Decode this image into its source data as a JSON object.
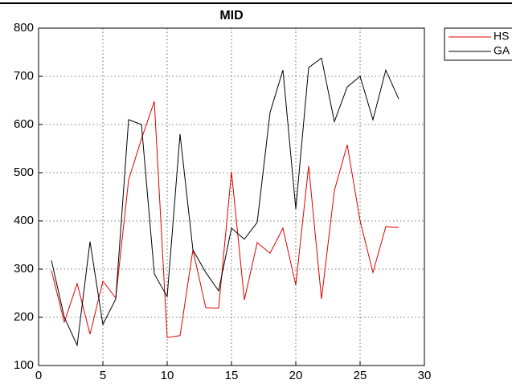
{
  "chart_data": {
    "type": "line",
    "title": "MID",
    "x": [
      1,
      2,
      3,
      4,
      5,
      6,
      7,
      8,
      9,
      10,
      11,
      12,
      13,
      14,
      15,
      16,
      17,
      18,
      19,
      20,
      21,
      22,
      23,
      24,
      25,
      26,
      27,
      28
    ],
    "series": [
      {
        "name": "HS",
        "color": "#e00000",
        "values": [
          297,
          190,
          270,
          165,
          275,
          240,
          485,
          570,
          648,
          158,
          162,
          340,
          220,
          219,
          502,
          236,
          355,
          333,
          385,
          267,
          514,
          238,
          463,
          558,
          400,
          293,
          388,
          386
        ]
      },
      {
        "name": "GA",
        "color": "#000000",
        "values": [
          318,
          200,
          142,
          357,
          185,
          238,
          610,
          600,
          290,
          243,
          580,
          340,
          293,
          255,
          385,
          362,
          397,
          625,
          713,
          425,
          718,
          738,
          606,
          678,
          700,
          610,
          713,
          653
        ]
      }
    ],
    "xlim": [
      0,
      30
    ],
    "xticks": [
      0,
      5,
      10,
      15,
      20,
      25,
      30
    ],
    "ylim": [
      100,
      800
    ],
    "yticks": [
      100,
      200,
      300,
      400,
      500,
      600,
      700,
      800
    ],
    "grid": true,
    "legend": "outside-right"
  }
}
